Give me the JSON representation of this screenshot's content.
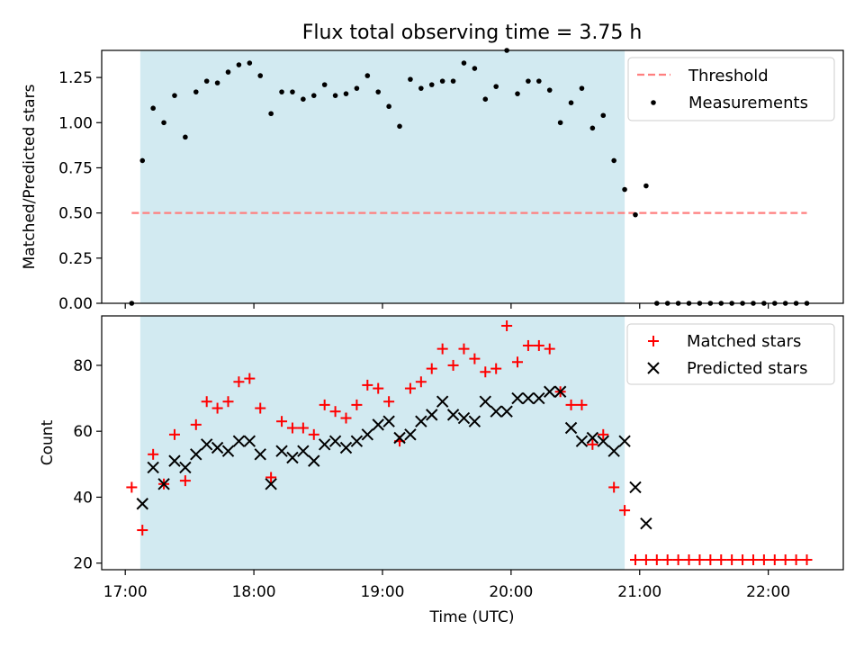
{
  "title": "Flux total observing time = 3.75 h",
  "xlabel": "Time (UTC)",
  "chart_data": [
    {
      "type": "scatter",
      "ylabel": "Matched/Predicted stars",
      "ylim": [
        0,
        1.4
      ],
      "yticks": [
        0.0,
        0.25,
        0.5,
        0.75,
        1.0,
        1.25
      ],
      "ytick_labels": [
        "0.00",
        "0.25",
        "0.50",
        "0.75",
        "1.00",
        "1.25"
      ],
      "xlim": [
        "16:49",
        "22:35"
      ],
      "shaded_span": [
        "17:07",
        "20:53"
      ],
      "legend": [
        "Threshold",
        "Measurements"
      ],
      "legend_position": "top-right",
      "threshold": {
        "name": "Threshold",
        "y": 0.5,
        "x_range": [
          "17:03",
          "22:18"
        ],
        "color": "#ff7f7f",
        "style": "dashed"
      },
      "series": [
        {
          "name": "Measurements",
          "marker": "dot",
          "color": "#000000",
          "x": [
            "17:03",
            "17:08",
            "17:13",
            "17:18",
            "17:23",
            "17:28",
            "17:33",
            "17:38",
            "17:43",
            "17:48",
            "17:53",
            "17:58",
            "18:03",
            "18:08",
            "18:13",
            "18:18",
            "18:23",
            "18:28",
            "18:33",
            "18:38",
            "18:43",
            "18:48",
            "18:53",
            "18:58",
            "19:03",
            "19:08",
            "19:13",
            "19:18",
            "19:23",
            "19:28",
            "19:33",
            "19:38",
            "19:43",
            "19:48",
            "19:53",
            "19:58",
            "20:03",
            "20:08",
            "20:13",
            "20:18",
            "20:23",
            "20:28",
            "20:33",
            "20:38",
            "20:43",
            "20:48",
            "20:53",
            "20:58",
            "21:03",
            "21:08",
            "21:13",
            "21:18",
            "21:23",
            "21:28",
            "21:33",
            "21:38",
            "21:43",
            "21:48",
            "21:53",
            "21:58",
            "22:03",
            "22:08",
            "22:13",
            "22:18"
          ],
          "y": [
            0.0,
            0.79,
            1.08,
            1.0,
            1.15,
            0.92,
            1.17,
            1.23,
            1.22,
            1.28,
            1.32,
            1.33,
            1.26,
            1.05,
            1.17,
            1.17,
            1.13,
            1.15,
            1.21,
            1.15,
            1.16,
            1.19,
            1.26,
            1.17,
            1.09,
            0.98,
            1.24,
            1.19,
            1.21,
            1.23,
            1.23,
            1.33,
            1.3,
            1.13,
            1.2,
            1.4,
            1.16,
            1.23,
            1.23,
            1.18,
            1.0,
            1.11,
            1.19,
            0.97,
            1.04,
            0.79,
            0.63,
            0.49,
            0.65,
            0.0,
            0.0,
            0.0,
            0.0,
            0.0,
            0.0,
            0.0,
            0.0,
            0.0,
            0.0,
            0.0,
            0.0,
            0.0,
            0.0,
            0.0
          ]
        }
      ]
    },
    {
      "type": "scatter",
      "ylabel": "Count",
      "ylim": [
        18,
        95
      ],
      "yticks": [
        20,
        40,
        60,
        80
      ],
      "ytick_labels": [
        "20",
        "40",
        "60",
        "80"
      ],
      "xlim": [
        "16:49",
        "22:35"
      ],
      "xticks": [
        "17:00",
        "18:00",
        "19:00",
        "20:00",
        "21:00",
        "22:00"
      ],
      "xtick_labels": [
        "17:00",
        "18:00",
        "19:00",
        "20:00",
        "21:00",
        "22:00"
      ],
      "shaded_span": [
        "17:07",
        "20:53"
      ],
      "legend": [
        "Matched stars",
        "Predicted stars"
      ],
      "legend_position": "top-right",
      "series": [
        {
          "name": "Matched stars",
          "marker": "plus",
          "color": "#ff0000",
          "x": [
            "17:03",
            "17:08",
            "17:13",
            "17:18",
            "17:23",
            "17:28",
            "17:33",
            "17:38",
            "17:43",
            "17:48",
            "17:53",
            "17:58",
            "18:03",
            "18:08",
            "18:13",
            "18:18",
            "18:23",
            "18:28",
            "18:33",
            "18:38",
            "18:43",
            "18:48",
            "18:53",
            "18:58",
            "19:03",
            "19:08",
            "19:13",
            "19:18",
            "19:23",
            "19:28",
            "19:33",
            "19:38",
            "19:43",
            "19:48",
            "19:53",
            "19:58",
            "20:03",
            "20:08",
            "20:13",
            "20:18",
            "20:23",
            "20:28",
            "20:33",
            "20:38",
            "20:43",
            "20:48",
            "20:53",
            "20:58",
            "21:03",
            "21:08",
            "21:13",
            "21:18",
            "21:23",
            "21:28",
            "21:33",
            "21:38",
            "21:43",
            "21:48",
            "21:53",
            "21:58",
            "22:03",
            "22:08",
            "22:13",
            "22:18"
          ],
          "y": [
            43,
            30,
            53,
            44,
            59,
            45,
            62,
            69,
            67,
            69,
            75,
            76,
            67,
            46,
            63,
            61,
            61,
            59,
            68,
            66,
            64,
            68,
            74,
            73,
            69,
            57,
            73,
            75,
            79,
            85,
            80,
            85,
            82,
            78,
            79,
            92,
            81,
            86,
            86,
            85,
            72,
            68,
            68,
            56,
            59,
            43,
            36,
            21,
            21,
            21,
            21,
            21,
            21,
            21,
            21,
            21,
            21,
            21,
            21,
            21,
            21,
            21,
            21,
            21
          ]
        },
        {
          "name": "Predicted stars",
          "marker": "x",
          "color": "#000000",
          "x": [
            "17:08",
            "17:13",
            "17:18",
            "17:23",
            "17:28",
            "17:33",
            "17:38",
            "17:43",
            "17:48",
            "17:53",
            "17:58",
            "18:03",
            "18:08",
            "18:13",
            "18:18",
            "18:23",
            "18:28",
            "18:33",
            "18:38",
            "18:43",
            "18:48",
            "18:53",
            "18:58",
            "19:03",
            "19:08",
            "19:13",
            "19:18",
            "19:23",
            "19:28",
            "19:33",
            "19:38",
            "19:43",
            "19:48",
            "19:53",
            "19:58",
            "20:03",
            "20:08",
            "20:13",
            "20:18",
            "20:23",
            "20:28",
            "20:33",
            "20:38",
            "20:43",
            "20:48",
            "20:53",
            "20:58",
            "21:03"
          ],
          "y": [
            38,
            49,
            44,
            51,
            49,
            53,
            56,
            55,
            54,
            57,
            57,
            53,
            44,
            54,
            52,
            54,
            51,
            56,
            57,
            55,
            57,
            59,
            62,
            63,
            58,
            59,
            63,
            65,
            69,
            65,
            64,
            63,
            69,
            66,
            66,
            70,
            70,
            70,
            72,
            72,
            61,
            57,
            58,
            57,
            54,
            57,
            43,
            32
          ]
        }
      ]
    }
  ]
}
